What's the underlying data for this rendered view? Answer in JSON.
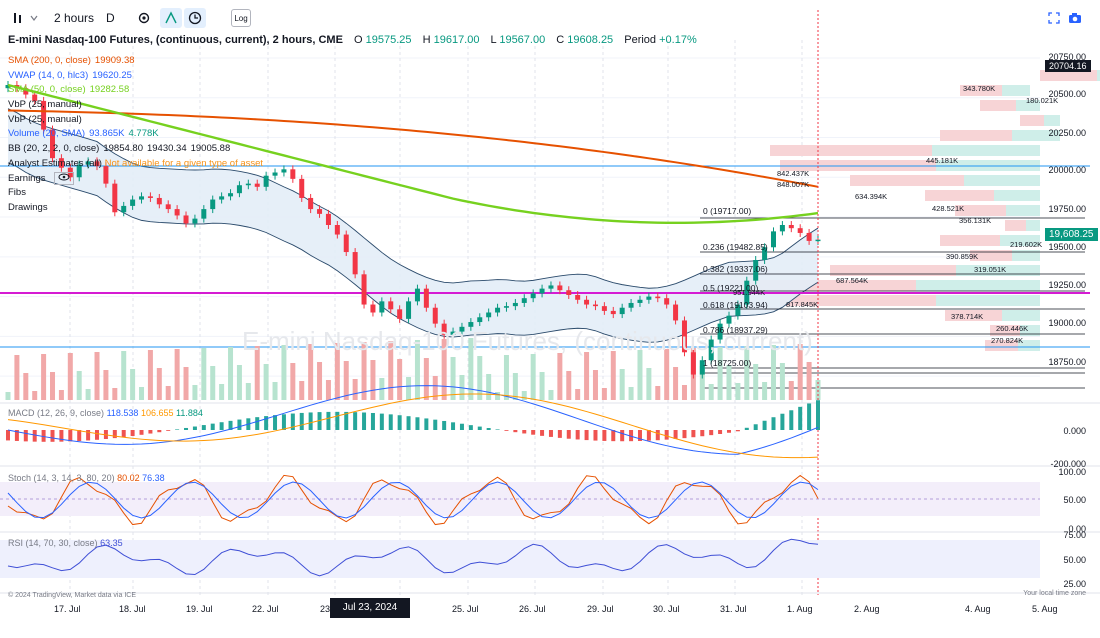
{
  "toolbar": {
    "interval": "2 hours",
    "data_mode": "D",
    "log_label": "Log"
  },
  "title": {
    "symbol": "E-mini Nasdaq-100 Futures, (continuous, current), 2 hours, CME",
    "o_label": "O",
    "o": "19575.25",
    "h_label": "H",
    "h": "19617.00",
    "l_label": "L",
    "l": "19567.00",
    "c_label": "C",
    "c": "19608.25",
    "period_label": "Period",
    "period": "+0.17%"
  },
  "indicators": [
    {
      "name": "SMA (200, 0, close)",
      "value": "19909.38",
      "color": "#e65100"
    },
    {
      "name": "VWAP (14, 0, hlc3)",
      "value": "19620.25",
      "color": "#2962ff"
    },
    {
      "name": "SMA (50, 0, close)",
      "value": "19282.58",
      "color": "#76d11f"
    },
    {
      "name": "VbP (25, manual)",
      "value": "",
      "color": "#131722"
    },
    {
      "name": "VbP (25, manual)",
      "value": "",
      "color": "#131722"
    },
    {
      "name": "Volume (20, SMA)",
      "value": "93.865K",
      "value2": "4.778K",
      "color": "#2962ff"
    },
    {
      "name": "BB (20, 2, 2, 0, close)",
      "value": "19854.80",
      "value2": "19430.34",
      "value3": "19005.88",
      "color": "#131722"
    },
    {
      "name": "Analyst Estimates (all)",
      "value": "Not available for a given type of asset",
      "color": "#131722"
    },
    {
      "name": "Earnings",
      "value": "",
      "color": "#131722"
    },
    {
      "name": "Fibs",
      "value": "",
      "color": "#131722"
    },
    {
      "name": "Drawings",
      "value": "",
      "color": "#131722"
    }
  ],
  "price_axis": [
    "20750.00",
    "20500.00",
    "20250.00",
    "20000.00",
    "19750.00",
    "19500.00",
    "19250.00",
    "19000.00",
    "18750.00"
  ],
  "price_tags": {
    "top": "20704.16",
    "current": "19,608.25"
  },
  "fib_levels": [
    {
      "label": "0 (19717.00)"
    },
    {
      "label": "0.236 (19482.85)"
    },
    {
      "label": "0.382 (19337.06)"
    },
    {
      "label": "0.5 (19221.00)"
    },
    {
      "label": "0.618 (19103.94)"
    },
    {
      "label": "0.786 (18937.29)"
    },
    {
      "label": "1 (18725.00)"
    }
  ],
  "vbp_labels": [
    "343.780K",
    "180.021K",
    "445.181K",
    "842.437K",
    "848.007K",
    "634.394K",
    "428.521K",
    "356.131K",
    "219.602K",
    "390.859K",
    "319.051K",
    "687.564K",
    "951.944K",
    "817.845K",
    "378.714K",
    "260.446K",
    "270.824K"
  ],
  "macd": {
    "name": "MACD (12, 26, 9, close)",
    "v1": "118.538",
    "v2": "106.655",
    "v3": "11.884",
    "axis": [
      "0.000",
      "-200.000"
    ]
  },
  "stoch": {
    "name": "Stoch (14, 3, 14, 3, 80, 20)",
    "v1": "80.02",
    "v2": "76.38",
    "axis": [
      "100.00",
      "50.00",
      "0.00"
    ]
  },
  "rsi": {
    "name": "RSI (14, 70, 30, close)",
    "v1": "63.35",
    "axis": [
      "75.00",
      "50.00",
      "25.00"
    ]
  },
  "dates": [
    "17. Jul",
    "18. Jul",
    "19. Jul",
    "22. Jul",
    "23",
    "25. Jul",
    "26. Jul",
    "29. Jul",
    "30. Jul",
    "31. Jul",
    "1. Aug",
    "2. Aug",
    "4. Aug",
    "5. Aug"
  ],
  "crosshair_date": "Jul 23, 2024 14:00",
  "footer_left": "© 2024 TradingView, Market data via ICE",
  "footer_right": "Your local time zone",
  "watermark": "E-mini Nasdaq-100 Futures, (continuous, current)",
  "chart_data": {
    "type": "line",
    "ylim": [
      18600,
      20800
    ],
    "close_series": [
      20580,
      20560,
      20520,
      20480,
      20300,
      20120,
      20060,
      20000,
      20080,
      20100,
      20070,
      19960,
      19780,
      19820,
      19860,
      19880,
      19870,
      19830,
      19800,
      19760,
      19710,
      19740,
      19800,
      19860,
      19880,
      19900,
      19950,
      19960,
      19940,
      20010,
      20030,
      20050,
      19990,
      19870,
      19800,
      19770,
      19700,
      19640,
      19530,
      19390,
      19200,
      19150,
      19220,
      19170,
      19110,
      19220,
      19300,
      19180,
      19080,
      19010,
      19030,
      19060,
      19090,
      19120,
      19150,
      19180,
      19190,
      19210,
      19240,
      19270,
      19300,
      19320,
      19290,
      19260,
      19230,
      19200,
      19190,
      19160,
      19140,
      19180,
      19210,
      19230,
      19250,
      19240,
      19200,
      19100,
      18900,
      18760,
      18850,
      18980,
      19080,
      19130,
      19200,
      19350,
      19480,
      19560,
      19660,
      19700,
      19680,
      19650,
      19600,
      19608
    ]
  }
}
